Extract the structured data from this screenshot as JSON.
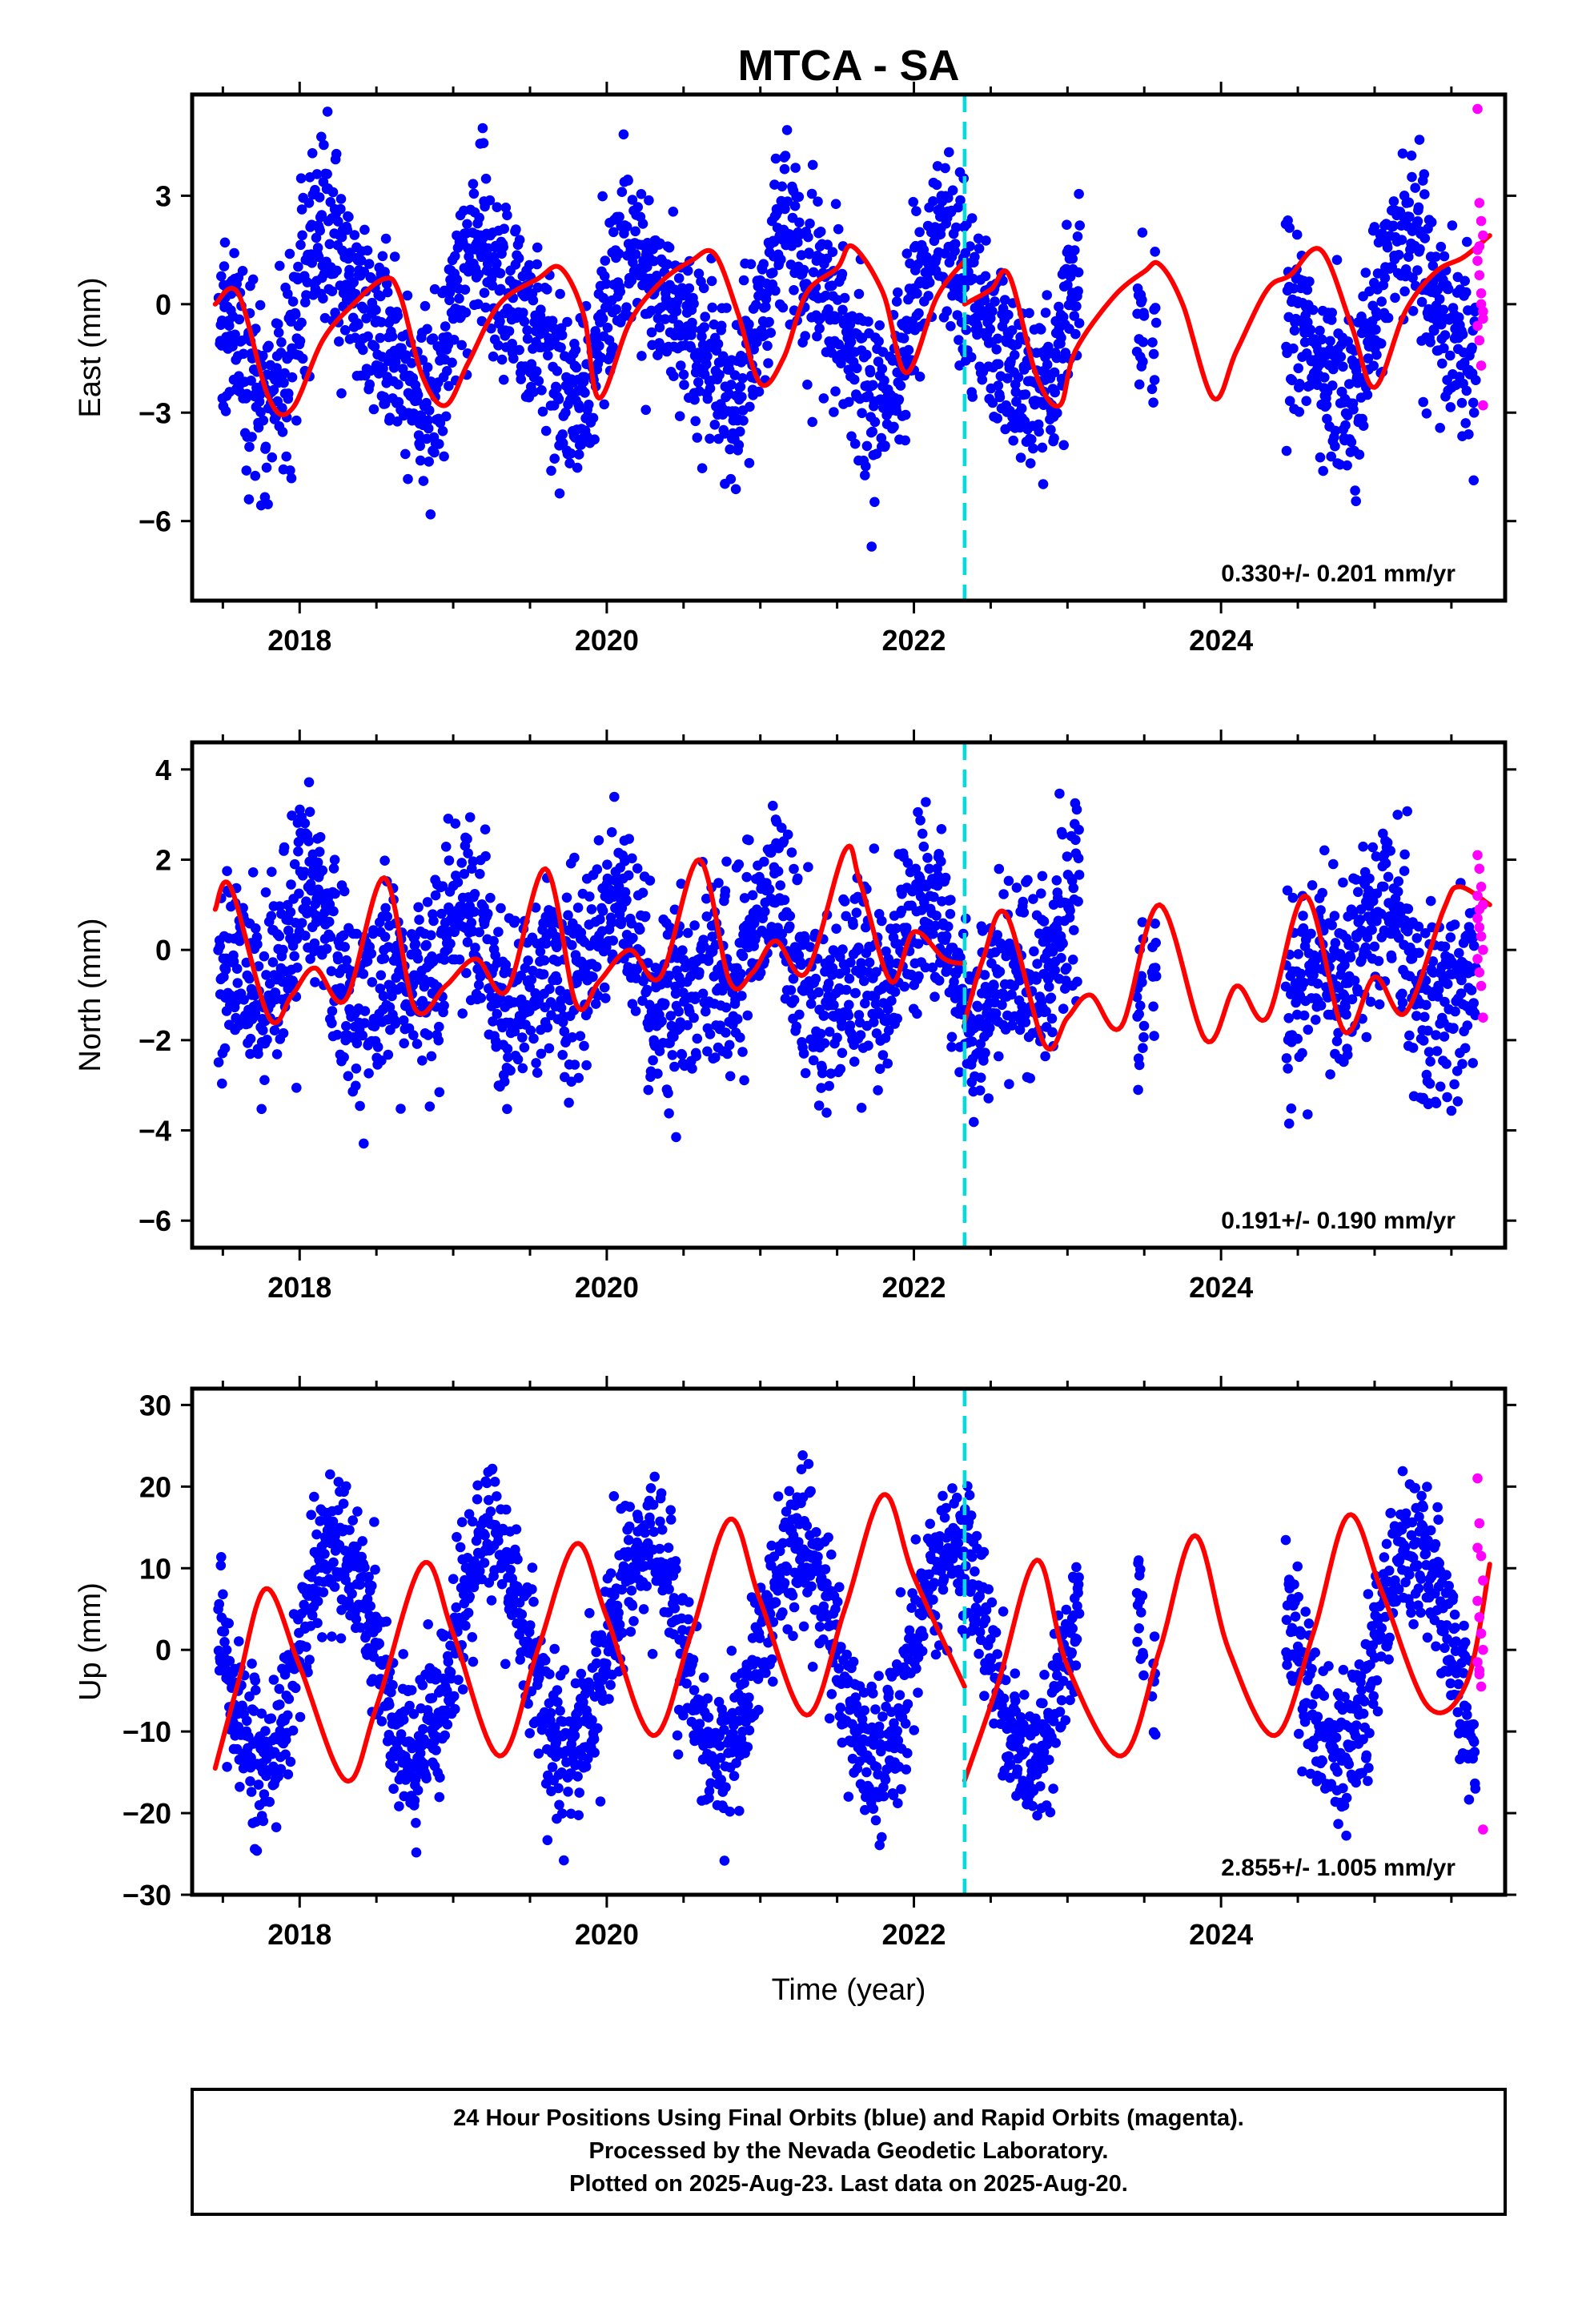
{
  "title": "MTCA - SA",
  "xlabel": "Time (year)",
  "colors": {
    "final": "#0000ff",
    "rapid": "#ff00ff",
    "model": "#ff0000",
    "break": "#00dddd"
  },
  "footer": {
    "line1": "24 Hour Positions Using Final Orbits (blue) and Rapid Orbits (magenta).",
    "line2": "Processed by the Nevada Geodetic Laboratory.",
    "line3": "Plotted on 2025-Aug-23. Last data on 2025-Aug-20."
  },
  "chart_data": [
    {
      "type": "scatter",
      "ylabel": "East (mm)",
      "rate_text": "0.330+/- 0.201 mm/yr",
      "xlim": [
        2017.3,
        2025.85
      ],
      "ylim": [
        -8.2,
        5.8
      ],
      "yticks": [
        -6,
        -3,
        0,
        3
      ],
      "ytick_labels": [
        "−6",
        "−3",
        "0",
        "3"
      ],
      "xticks": [
        2018,
        2020,
        2022,
        2024
      ],
      "xtick_labels": [
        "2018",
        "2020",
        "2022",
        "2024"
      ],
      "break_x": 2022.33,
      "seasonal": {
        "mean": -0.5,
        "a1": 2.0,
        "p1": 0.1,
        "a2": 0.6,
        "p2": 0.3
      },
      "noise": 1.25,
      "model": {
        "x": [
          2017.45,
          2017.6,
          2017.8,
          2017.95,
          2018.15,
          2018.35,
          2018.55,
          2018.65,
          2018.8,
          2018.95,
          2019.1,
          2019.3,
          2019.55,
          2019.7,
          2019.85,
          2019.95,
          2020.15,
          2020.35,
          2020.55,
          2020.7,
          2020.85,
          2021.0,
          2021.15,
          2021.3,
          2021.5,
          2021.6,
          2021.8,
          2021.95,
          2022.15,
          2022.33,
          2022.33,
          2022.5,
          2022.62,
          2022.8,
          2022.95,
          2023.05,
          2023.3,
          2023.5,
          2023.6,
          2023.75,
          2023.95,
          2024.1,
          2024.3,
          2024.45,
          2024.65,
          2024.85,
          2025.0,
          2025.2,
          2025.4,
          2025.58,
          2025.75
        ],
        "y": [
          0.0,
          0.3,
          -2.6,
          -2.9,
          -1.0,
          0.0,
          0.7,
          0.3,
          -2.0,
          -2.8,
          -1.6,
          0.0,
          0.7,
          1.0,
          -0.3,
          -2.6,
          -0.5,
          0.6,
          1.2,
          1.4,
          -0.2,
          -2.2,
          -1.5,
          0.3,
          1.0,
          1.6,
          0.3,
          -1.9,
          0.2,
          1.2,
          0.0,
          0.4,
          0.8,
          -2.0,
          -2.8,
          -1.3,
          0.2,
          0.9,
          1.1,
          0.0,
          -2.6,
          -1.3,
          0.4,
          0.8,
          1.5,
          -0.6,
          -2.3,
          -0.2,
          0.9,
          1.3,
          1.9
        ]
      },
      "rapid": [
        1.5,
        2.8,
        2.3,
        1.9,
        1.2,
        0.8,
        0.3,
        -0.2,
        -0.6,
        -1.0,
        -1.7,
        -2.8,
        5.4,
        1.6,
        0.0,
        -0.4
      ]
    },
    {
      "type": "scatter",
      "ylabel": "North (mm)",
      "rate_text": "0.191+/- 0.190 mm/yr",
      "xlim": [
        2017.3,
        2025.85
      ],
      "ylim": [
        -6.6,
        4.6
      ],
      "yticks": [
        -6,
        -4,
        -2,
        0,
        2,
        4
      ],
      "ytick_labels": [
        "−6",
        "−4",
        "−2",
        "0",
        "2",
        "4"
      ],
      "xticks": [
        2018,
        2020,
        2022,
        2024
      ],
      "xtick_labels": [
        "2018",
        "2020",
        "2022",
        "2024"
      ],
      "break_x": 2022.33,
      "seasonal": {
        "mean": -0.3,
        "a1": 0.9,
        "p1": 1.4,
        "a2": 0.7,
        "p2": 0.5
      },
      "noise": 1.05,
      "model": {
        "x": [
          2017.45,
          2017.55,
          2017.8,
          2017.95,
          2018.1,
          2018.3,
          2018.55,
          2018.75,
          2018.95,
          2019.15,
          2019.35,
          2019.6,
          2019.8,
          2019.95,
          2020.15,
          2020.35,
          2020.6,
          2020.8,
          2020.95,
          2021.1,
          2021.3,
          2021.55,
          2021.65,
          2021.85,
          2022.0,
          2022.2,
          2022.33,
          2022.33,
          2022.45,
          2022.6,
          2022.85,
          2023.0,
          2023.15,
          2023.35,
          2023.6,
          2023.9,
          2024.1,
          2024.3,
          2024.55,
          2024.8,
          2025.0,
          2025.2,
          2025.45,
          2025.55,
          2025.75
        ],
        "y": [
          0.9,
          1.4,
          -1.5,
          -1.0,
          -0.4,
          -1.1,
          1.6,
          -1.3,
          -0.8,
          -0.2,
          -0.9,
          1.8,
          -1.2,
          -0.7,
          0.0,
          -0.6,
          2.0,
          -0.7,
          -0.5,
          0.2,
          -0.5,
          2.2,
          1.5,
          -0.7,
          0.4,
          -0.2,
          -0.3,
          -1.6,
          -0.2,
          0.8,
          -2.1,
          -1.5,
          -1.0,
          -1.7,
          1.0,
          -2.0,
          -0.8,
          -1.5,
          1.2,
          -1.8,
          -0.6,
          -1.4,
          0.9,
          1.4,
          1.0
        ]
      },
      "rapid": [
        2.1,
        1.8,
        1.4,
        1.0,
        0.7,
        0.5,
        0.3,
        0.0,
        -0.2,
        -0.5,
        -0.8,
        -1.5,
        1.2,
        0.9
      ]
    },
    {
      "type": "scatter",
      "ylabel": "Up (mm)",
      "rate_text": "2.855+/- 1.005 mm/yr",
      "xlim": [
        2017.3,
        2025.85
      ],
      "ylim": [
        -30,
        32
      ],
      "yticks": [
        -30,
        -20,
        -10,
        0,
        10,
        20,
        30
      ],
      "ytick_labels": [
        "−30",
        "−20",
        "−10",
        "0",
        "10",
        "20",
        "30"
      ],
      "xticks": [
        2018,
        2020,
        2022,
        2024
      ],
      "xtick_labels": [
        "2018",
        "2020",
        "2022",
        "2024"
      ],
      "break_x": 2022.33,
      "seasonal": {
        "mean": 0.0,
        "a1": 13.0,
        "p1": 0.0,
        "a2": 0.0,
        "p2": 0.0
      },
      "noise": 4.5,
      "model": {
        "x": [
          2017.45,
          2017.6,
          2017.78,
          2018.0,
          2018.3,
          2018.5,
          2018.8,
          2019.0,
          2019.3,
          2019.55,
          2019.8,
          2020.0,
          2020.3,
          2020.55,
          2020.8,
          2021.0,
          2021.3,
          2021.55,
          2021.8,
          2022.0,
          2022.33,
          2022.33,
          2022.55,
          2022.8,
          2023.0,
          2023.35,
          2023.6,
          2023.83,
          2024.05,
          2024.35,
          2024.6,
          2024.83,
          2025.05,
          2025.35,
          2025.6,
          2025.75
        ],
        "y": [
          -14.5,
          -4.0,
          7.5,
          -2.0,
          -16.0,
          -7.0,
          10.5,
          2.0,
          -13.0,
          0.0,
          13.0,
          4.0,
          -10.5,
          2.0,
          16.0,
          6.0,
          -8.0,
          5.0,
          19.0,
          9.0,
          -4.5,
          -16.0,
          -4.0,
          11.0,
          -2.0,
          -13.0,
          0.0,
          14.0,
          0.0,
          -10.5,
          2.0,
          16.5,
          7.0,
          -7.0,
          -4.0,
          10.5
        ]
      },
      "rapid": [
        21.0,
        15.5,
        11.5,
        8.5,
        6.0,
        4.0,
        2.0,
        0.0,
        -1.5,
        -3.0,
        -4.5,
        -22.0,
        12.5,
        -2.5
      ]
    }
  ]
}
